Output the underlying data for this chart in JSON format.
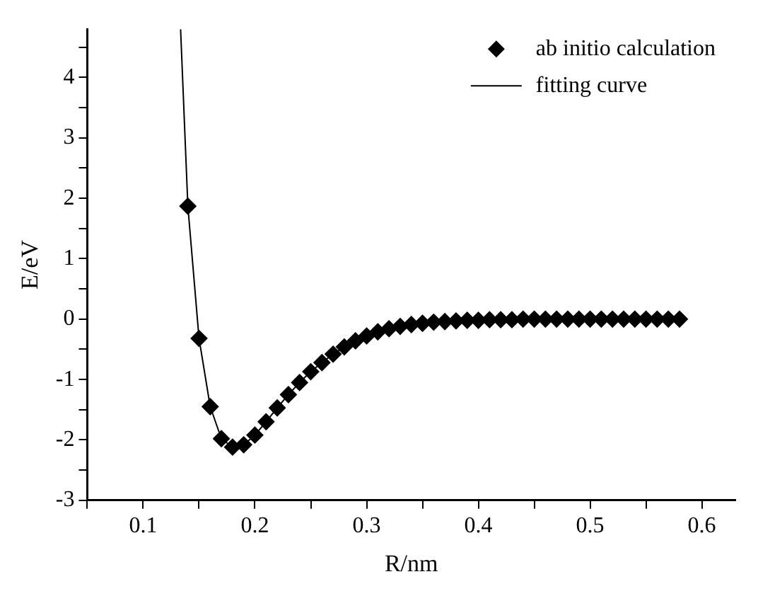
{
  "chart_data": {
    "type": "scatter",
    "xlabel": "R/nm",
    "ylabel": "E/eV",
    "xlim": [
      0.05,
      0.63
    ],
    "ylim": [
      -3,
      4.8
    ],
    "xticks": [
      {
        "value": 0.05,
        "label": null
      },
      0.1,
      {
        "value": 0.15,
        "label": null
      },
      0.2,
      {
        "value": 0.25,
        "label": null
      },
      0.3,
      {
        "value": 0.35,
        "label": null
      },
      0.4,
      {
        "value": 0.45,
        "label": null
      },
      0.5,
      {
        "value": 0.55,
        "label": null
      },
      0.6
    ],
    "yticks": [
      -3,
      {
        "value": -2.5,
        "label": null
      },
      -2,
      {
        "value": -1.5,
        "label": null
      },
      -1,
      {
        "value": -0.5,
        "label": null
      },
      0,
      {
        "value": 0.5,
        "label": null
      },
      1,
      {
        "value": 1.5,
        "label": null
      },
      2,
      {
        "value": 2.5,
        "label": null
      },
      3,
      {
        "value": 3.5,
        "label": null
      },
      4,
      {
        "value": 4.5,
        "label": null
      }
    ],
    "grid": false,
    "legend": "top right",
    "series": [
      {
        "name": "ab initio calculation",
        "type": "scatter",
        "marker": "diamond",
        "color": "#000000",
        "x": [
          0.14,
          0.15,
          0.16,
          0.17,
          0.18,
          0.19,
          0.2,
          0.21,
          0.22,
          0.23,
          0.24,
          0.25,
          0.26,
          0.27,
          0.28,
          0.29,
          0.3,
          0.31,
          0.32,
          0.33,
          0.34,
          0.35,
          0.36,
          0.37,
          0.38,
          0.39,
          0.4,
          0.41,
          0.42,
          0.43,
          0.44,
          0.45,
          0.46,
          0.47,
          0.48,
          0.49,
          0.5,
          0.51,
          0.52,
          0.53,
          0.54,
          0.55,
          0.56,
          0.57,
          0.58
        ],
        "values": [
          1.87,
          -0.32,
          -1.45,
          -1.98,
          -2.12,
          -2.08,
          -1.92,
          -1.7,
          -1.47,
          -1.25,
          -1.05,
          -0.87,
          -0.72,
          -0.58,
          -0.46,
          -0.36,
          -0.28,
          -0.21,
          -0.16,
          -0.12,
          -0.09,
          -0.07,
          -0.05,
          -0.04,
          -0.03,
          -0.02,
          -0.02,
          -0.01,
          -0.01,
          -0.01,
          0,
          0,
          0,
          0,
          0,
          0,
          0,
          0,
          0,
          0,
          0,
          0,
          0,
          0,
          0
        ]
      },
      {
        "name": "fitting curve",
        "type": "line",
        "marker": "none",
        "line_style": "solid",
        "color": "#000000",
        "x": [
          0.1335,
          0.14,
          0.15,
          0.16,
          0.17,
          0.18,
          0.19,
          0.2,
          0.21,
          0.22,
          0.23,
          0.24,
          0.25,
          0.26,
          0.27,
          0.28,
          0.29,
          0.3,
          0.31,
          0.32,
          0.33,
          0.34,
          0.35,
          0.36,
          0.37,
          0.38,
          0.39,
          0.4,
          0.42,
          0.44,
          0.46,
          0.5,
          0.54,
          0.58
        ],
        "values": [
          4.8,
          1.87,
          -0.32,
          -1.45,
          -1.98,
          -2.12,
          -2.08,
          -1.92,
          -1.7,
          -1.47,
          -1.25,
          -1.05,
          -0.87,
          -0.72,
          -0.58,
          -0.46,
          -0.36,
          -0.28,
          -0.21,
          -0.16,
          -0.12,
          -0.09,
          -0.07,
          -0.05,
          -0.04,
          -0.03,
          -0.02,
          -0.02,
          -0.01,
          0,
          0,
          0,
          0,
          0
        ]
      }
    ]
  }
}
